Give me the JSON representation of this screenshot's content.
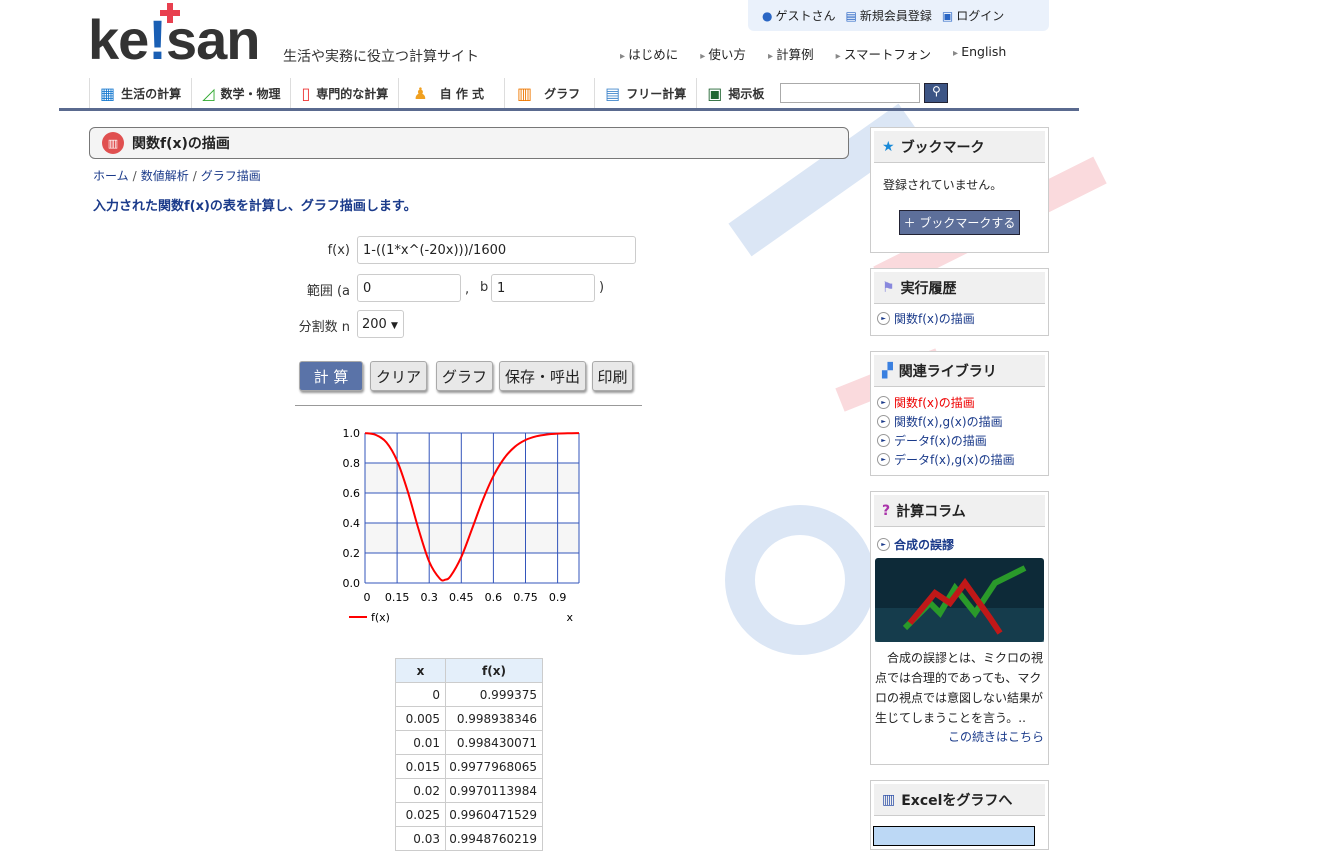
{
  "header": {
    "logo": "keisan",
    "tagline": "生活や実務に役立つ計算サイト",
    "user": [
      {
        "icon": "user-icon",
        "label": "ゲストさん"
      },
      {
        "icon": "register-icon",
        "label": "新規会員登録"
      },
      {
        "icon": "lock-icon",
        "label": "ログイン"
      }
    ],
    "links": [
      "はじめに",
      "使い方",
      "計算例",
      "スマートフォン",
      "English"
    ],
    "nav": [
      {
        "icon": "calculator-icon",
        "label": "生活の計算"
      },
      {
        "icon": "triangle-ruler-icon",
        "label": "数学・物理"
      },
      {
        "icon": "book-icon",
        "label": "専門的な計算"
      },
      {
        "icon": "people-icon",
        "label": "自 作 式"
      },
      {
        "icon": "bar-chart-icon",
        "label": "グラフ"
      },
      {
        "icon": "notepad-icon",
        "label": "フリー計算"
      },
      {
        "icon": "blackboard-icon",
        "label": "掲示板"
      }
    ],
    "search_value": ""
  },
  "page": {
    "title": "関数f(x)の描画",
    "breadcrumbs": [
      "ホーム",
      "数値解析",
      "グラフ描画"
    ],
    "lead": "入力された関数f(x)の表を計算し、グラフ描画します。"
  },
  "form": {
    "fx_label": "f(x)",
    "fx_value": "1-((1*x^(-20x)))/1600",
    "range_label": "範囲 (a",
    "a_value": "0",
    "comma": ",",
    "b_label": "b",
    "b_value": "1",
    "close_paren": ")",
    "n_label": "分割数 n",
    "n_value": "200",
    "buttons": [
      "計 算",
      "クリア",
      "グラフ",
      "保存・呼出",
      "印刷"
    ]
  },
  "chart_data": {
    "type": "line",
    "xlabel": "x",
    "ylabel": "",
    "legend": "bottom-left",
    "grid": true,
    "xlim": [
      0,
      1
    ],
    "ylim": [
      0,
      1
    ],
    "xticks": [
      "0",
      "0.15",
      "0.3",
      "0.45",
      "0.6",
      "0.75",
      "0.9"
    ],
    "yticks": [
      "0.0",
      "0.2",
      "0.4",
      "0.6",
      "0.8",
      "1.0"
    ],
    "series": [
      {
        "name": "f(x)",
        "color": "#ff0000",
        "x": [
          0,
          0.05,
          0.1,
          0.15,
          0.2,
          0.25,
          0.3,
          0.35,
          0.375,
          0.4,
          0.45,
          0.5,
          0.55,
          0.6,
          0.65,
          0.7,
          0.75,
          0.8,
          0.85,
          0.9,
          0.95,
          1.0
        ],
        "y": [
          0.999375,
          0.9875,
          0.9375,
          0.8146,
          0.6094,
          0.36,
          0.1424,
          0.0282,
          0.022,
          0.0463,
          0.1737,
          0.36,
          0.5515,
          0.7129,
          0.831,
          0.9079,
          0.9532,
          0.9778,
          0.9901,
          0.9958,
          0.9983,
          0.999375
        ]
      }
    ]
  },
  "table": {
    "headers": [
      "x",
      "f(x)"
    ],
    "rows": [
      [
        "0",
        "0.999375"
      ],
      [
        "0.005",
        "0.998938346"
      ],
      [
        "0.01",
        "0.998430071"
      ],
      [
        "0.015",
        "0.9977968065"
      ],
      [
        "0.02",
        "0.9970113984"
      ],
      [
        "0.025",
        "0.9960471529"
      ],
      [
        "0.03",
        "0.9948760219"
      ]
    ]
  },
  "sidebar": {
    "bookmark": {
      "title": "ブックマーク",
      "empty": "登録されていません。",
      "button": "＋ ブックマークする"
    },
    "history": {
      "title": "実行履歴",
      "items": [
        "関数f(x)の描画"
      ]
    },
    "library": {
      "title": "関連ライブラリ",
      "items": [
        "関数f(x)の描画",
        "関数f(x),g(x)の描画",
        "データf(x)の描画",
        "データf(x),g(x)の描画"
      ]
    },
    "column": {
      "title": "計算コラム",
      "link": "合成の誤謬",
      "text": "　合成の誤謬とは、ミクロの視点では合理的であっても、マクロの視点では意図しない結果が生じてしまうことを言う。..",
      "more": "この続きはこちら"
    },
    "excel": {
      "title": "Excelをグラフへ"
    }
  },
  "colors": {
    "accent": "#1a3a8a",
    "nav_line": "#5a6a8f",
    "curve": "#ff0000",
    "grid": "#3355bb"
  }
}
